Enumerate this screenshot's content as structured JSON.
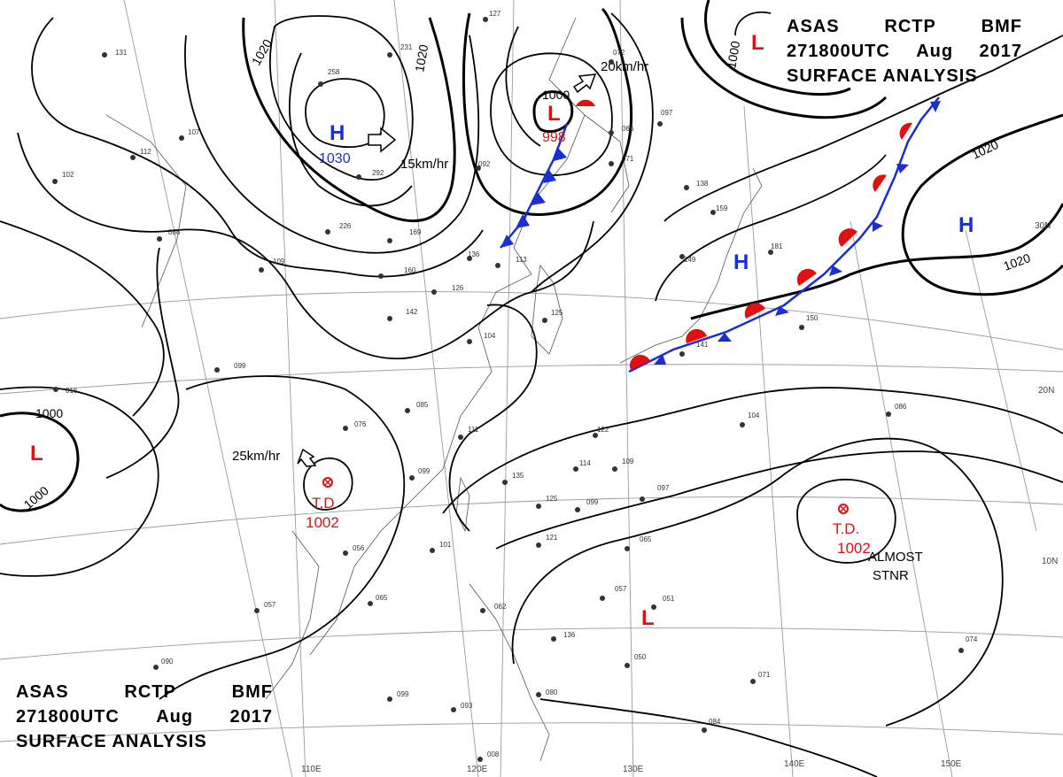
{
  "header": {
    "agency": "ASAS",
    "station": "RCTP",
    "office": "BMF",
    "time": "271800UTC",
    "month": "Aug",
    "year": "2017",
    "subtitle": "SURFACE ANALYSIS"
  },
  "pressure_centers": [
    {
      "id": "H1",
      "symbol": "H",
      "value": "1030",
      "color": "#1a2fd1"
    },
    {
      "id": "L1",
      "symbol": "L",
      "value": "998",
      "color": "#e01010"
    },
    {
      "id": "H2",
      "symbol": "H",
      "value": "",
      "color": "#1a2fd1"
    },
    {
      "id": "H3",
      "symbol": "H",
      "value": "",
      "color": "#1a2fd1"
    },
    {
      "id": "L2",
      "symbol": "L",
      "value": "",
      "color": "#e01010"
    },
    {
      "id": "L3",
      "symbol": "L",
      "value": "",
      "color": "#e01010"
    },
    {
      "id": "L4",
      "symbol": "L",
      "value": "",
      "color": "#e01010"
    }
  ],
  "tropical_depressions": [
    {
      "label": "T.D.",
      "pressure": "1002"
    },
    {
      "label": "T.D.",
      "pressure": "1002",
      "note_line1": "ALMOST",
      "note_line2": "STNR"
    }
  ],
  "motion_labels": [
    "15km/hr",
    "20km/hr",
    "25km/hr"
  ],
  "isobar_labels": [
    "1020",
    "1020",
    "1000",
    "1000",
    "1000",
    "1000",
    "1020",
    "1020"
  ],
  "lat_labels": [
    "30N",
    "20N",
    "10N"
  ],
  "lon_labels": [
    "110E",
    "120E",
    "130E",
    "140E",
    "150E"
  ],
  "station_numbers": [
    "127",
    "231",
    "258",
    "292",
    "226",
    "169",
    "160",
    "142",
    "126",
    "113",
    "136",
    "092",
    "072",
    "066",
    "071",
    "097",
    "138",
    "159",
    "149",
    "181",
    "150",
    "141",
    "125",
    "104",
    "099",
    "085",
    "111",
    "076",
    "099",
    "135",
    "125",
    "099",
    "122",
    "114",
    "109",
    "097",
    "065",
    "057",
    "051",
    "062",
    "136",
    "050",
    "099",
    "093",
    "090",
    "084",
    "071",
    "074",
    "086",
    "104",
    "056",
    "057",
    "065",
    "101",
    "016",
    "131",
    "107",
    "112",
    "102",
    "086",
    "109",
    "080",
    "008",
    "121"
  ],
  "colors": {
    "high": "#1a2fd1",
    "low": "#e01010",
    "isobar": "#000000",
    "grid": "#9a9a9a"
  }
}
